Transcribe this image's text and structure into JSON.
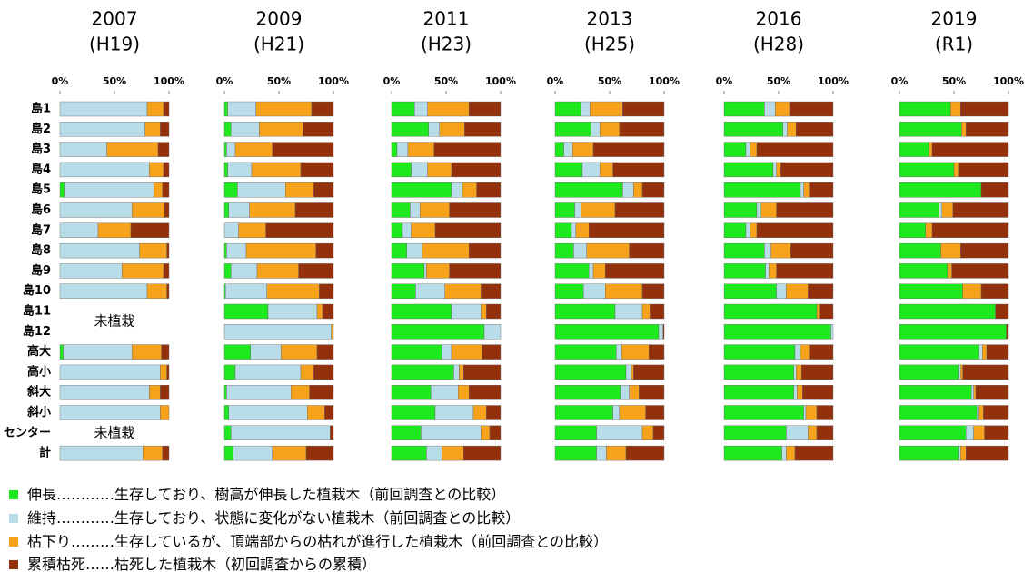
{
  "chart_data": [
    {
      "type": "bar",
      "orientation": "horizontal",
      "stacked": true,
      "title": "2007",
      "subtitle": "(H19)",
      "categories": [
        "島1",
        "島2",
        "島3",
        "島4",
        "島5",
        "島6",
        "島7",
        "島8",
        "島9",
        "島10",
        "島11",
        "島12",
        "高大",
        "高小",
        "斜大",
        "斜小",
        "センター",
        "計"
      ],
      "xlim": [
        0,
        100
      ],
      "xticks": [
        {
          "value": 0,
          "label": "0%"
        },
        {
          "value": 50,
          "label": "50%"
        },
        {
          "value": 100,
          "label": "100%"
        }
      ],
      "annotations": [
        {
          "text": "未植栽"
        },
        {
          "text": "未植栽"
        }
      ],
      "series": [
        {
          "name": "伸長",
          "description": "…………生存しており、樹高が伸長した植栽木（前回調査との比較）",
          "color": "#1ee81e",
          "values": [
            0,
            0,
            0,
            0,
            4,
            0,
            0,
            0,
            0,
            0,
            null,
            null,
            3,
            0,
            0,
            0,
            null,
            0
          ]
        },
        {
          "name": "維持",
          "description": "…………生存しており、状態に変化がない植栽木（前回調査との比較）",
          "color": "#b8dde8",
          "values": [
            80,
            78,
            43,
            82,
            82,
            66,
            35,
            73,
            57,
            80,
            null,
            null,
            63,
            92,
            82,
            92,
            null,
            76
          ]
        },
        {
          "name": "枯下り",
          "description": "………生存しているが、頂端部からの枯れが進行した植栽木（前回調査との比較）",
          "color": "#f7a21b",
          "values": [
            15,
            14,
            47,
            13,
            8,
            30,
            30,
            25,
            38,
            18,
            null,
            null,
            27,
            6,
            10,
            8,
            null,
            18
          ]
        },
        {
          "name": "累積枯死",
          "description": "……枯死した植栽木（初回調査からの累積）",
          "color": "#93310c",
          "values": [
            5,
            8,
            10,
            5,
            6,
            4,
            35,
            2,
            5,
            2,
            null,
            null,
            7,
            2,
            8,
            0,
            null,
            6
          ]
        }
      ]
    },
    {
      "type": "bar",
      "orientation": "horizontal",
      "stacked": true,
      "title": "2009",
      "subtitle": "(H21)",
      "xlim": [
        0,
        100
      ],
      "xticks": [
        {
          "value": 0,
          "label": "0%"
        },
        {
          "value": 50,
          "label": "50%"
        },
        {
          "value": 100,
          "label": "100%"
        }
      ],
      "series": [
        {
          "values": [
            3,
            6,
            2,
            3,
            12,
            4,
            0,
            2,
            6,
            1,
            40,
            0,
            24,
            10,
            2,
            4,
            6,
            8
          ]
        },
        {
          "values": [
            26,
            26,
            8,
            22,
            44,
            19,
            13,
            18,
            24,
            38,
            45,
            98,
            28,
            60,
            59,
            72,
            91,
            36
          ]
        },
        {
          "values": [
            51,
            40,
            34,
            45,
            26,
            42,
            25,
            64,
            38,
            48,
            5,
            2,
            33,
            12,
            17,
            16,
            0,
            31
          ]
        },
        {
          "values": [
            20,
            28,
            56,
            30,
            18,
            35,
            62,
            16,
            32,
            13,
            10,
            0,
            15,
            18,
            22,
            8,
            3,
            25
          ]
        }
      ]
    },
    {
      "type": "bar",
      "orientation": "horizontal",
      "stacked": true,
      "title": "2011",
      "subtitle": "(H23)",
      "xlim": [
        0,
        100
      ],
      "xticks": [
        {
          "value": 0,
          "label": "0%"
        },
        {
          "value": 50,
          "label": "50%"
        },
        {
          "value": 100,
          "label": "100%"
        }
      ],
      "series": [
        {
          "values": [
            21,
            34,
            5,
            18,
            55,
            17,
            10,
            14,
            30,
            22,
            55,
            85,
            46,
            57,
            36,
            40,
            27,
            32
          ]
        },
        {
          "values": [
            12,
            10,
            10,
            15,
            10,
            9,
            8,
            14,
            2,
            27,
            27,
            15,
            9,
            5,
            25,
            35,
            55,
            14
          ]
        },
        {
          "values": [
            38,
            23,
            24,
            22,
            13,
            27,
            22,
            43,
            21,
            33,
            5,
            0,
            28,
            4,
            10,
            12,
            8,
            20
          ]
        },
        {
          "values": [
            29,
            33,
            61,
            45,
            22,
            47,
            60,
            29,
            47,
            18,
            13,
            0,
            17,
            34,
            29,
            13,
            10,
            34
          ]
        }
      ]
    },
    {
      "type": "bar",
      "orientation": "horizontal",
      "stacked": true,
      "title": "2013",
      "subtitle": "(H25)",
      "xlim": [
        0,
        100
      ],
      "xticks": [
        {
          "value": 0,
          "label": "0%"
        },
        {
          "value": 50,
          "label": "50%"
        },
        {
          "value": 100,
          "label": "100%"
        }
      ],
      "series": [
        {
          "values": [
            24,
            33,
            8,
            25,
            62,
            18,
            15,
            17,
            31,
            26,
            55,
            95,
            56,
            65,
            60,
            53,
            38,
            38
          ]
        },
        {
          "values": [
            8,
            8,
            8,
            16,
            10,
            6,
            4,
            12,
            4,
            20,
            25,
            4,
            5,
            5,
            8,
            6,
            42,
            9
          ]
        },
        {
          "values": [
            30,
            18,
            19,
            12,
            8,
            31,
            12,
            39,
            11,
            34,
            7,
            0,
            25,
            2,
            9,
            24,
            10,
            18
          ]
        },
        {
          "values": [
            38,
            41,
            65,
            47,
            20,
            45,
            69,
            32,
            54,
            20,
            13,
            1,
            14,
            28,
            23,
            17,
            10,
            35
          ]
        }
      ]
    },
    {
      "type": "bar",
      "orientation": "horizontal",
      "stacked": true,
      "title": "2016",
      "subtitle": "(H28)",
      "xlim": [
        0,
        100
      ],
      "xticks": [
        {
          "value": 0,
          "label": "0%"
        },
        {
          "value": 50,
          "label": "50%"
        },
        {
          "value": 100,
          "label": "100%"
        }
      ],
      "series": [
        {
          "values": [
            37,
            54,
            20,
            45,
            70,
            30,
            20,
            37,
            38,
            48,
            85,
            98,
            65,
            64,
            64,
            73,
            57,
            53
          ]
        },
        {
          "values": [
            10,
            4,
            4,
            3,
            3,
            4,
            4,
            6,
            3,
            9,
            0,
            2,
            5,
            2,
            3,
            2,
            20,
            4
          ]
        },
        {
          "values": [
            13,
            8,
            6,
            4,
            5,
            14,
            6,
            18,
            7,
            20,
            3,
            0,
            8,
            5,
            5,
            10,
            8,
            8
          ]
        },
        {
          "values": [
            40,
            34,
            70,
            48,
            22,
            52,
            70,
            39,
            52,
            23,
            12,
            0,
            22,
            29,
            28,
            15,
            15,
            35
          ]
        }
      ]
    },
    {
      "type": "bar",
      "orientation": "horizontal",
      "stacked": true,
      "title": "2019",
      "subtitle": "(R1)",
      "xlim": [
        0,
        100
      ],
      "xticks": [
        {
          "value": 0,
          "label": "0%"
        },
        {
          "value": 50,
          "label": "50%"
        },
        {
          "value": 100,
          "label": "100%"
        }
      ],
      "series": [
        {
          "values": [
            47,
            57,
            27,
            50,
            75,
            36,
            24,
            38,
            44,
            58,
            88,
            98,
            73,
            54,
            66,
            71,
            61,
            54
          ]
        },
        {
          "values": [
            0,
            0,
            0,
            0,
            0,
            3,
            0,
            0,
            0,
            0,
            0,
            0,
            3,
            2,
            2,
            2,
            7,
            2
          ]
        },
        {
          "values": [
            9,
            4,
            3,
            4,
            0,
            10,
            6,
            18,
            4,
            17,
            0,
            0,
            4,
            2,
            2,
            4,
            10,
            5
          ]
        },
        {
          "values": [
            44,
            39,
            70,
            46,
            25,
            51,
            70,
            44,
            52,
            25,
            12,
            2,
            20,
            42,
            30,
            23,
            22,
            39
          ]
        }
      ]
    }
  ]
}
